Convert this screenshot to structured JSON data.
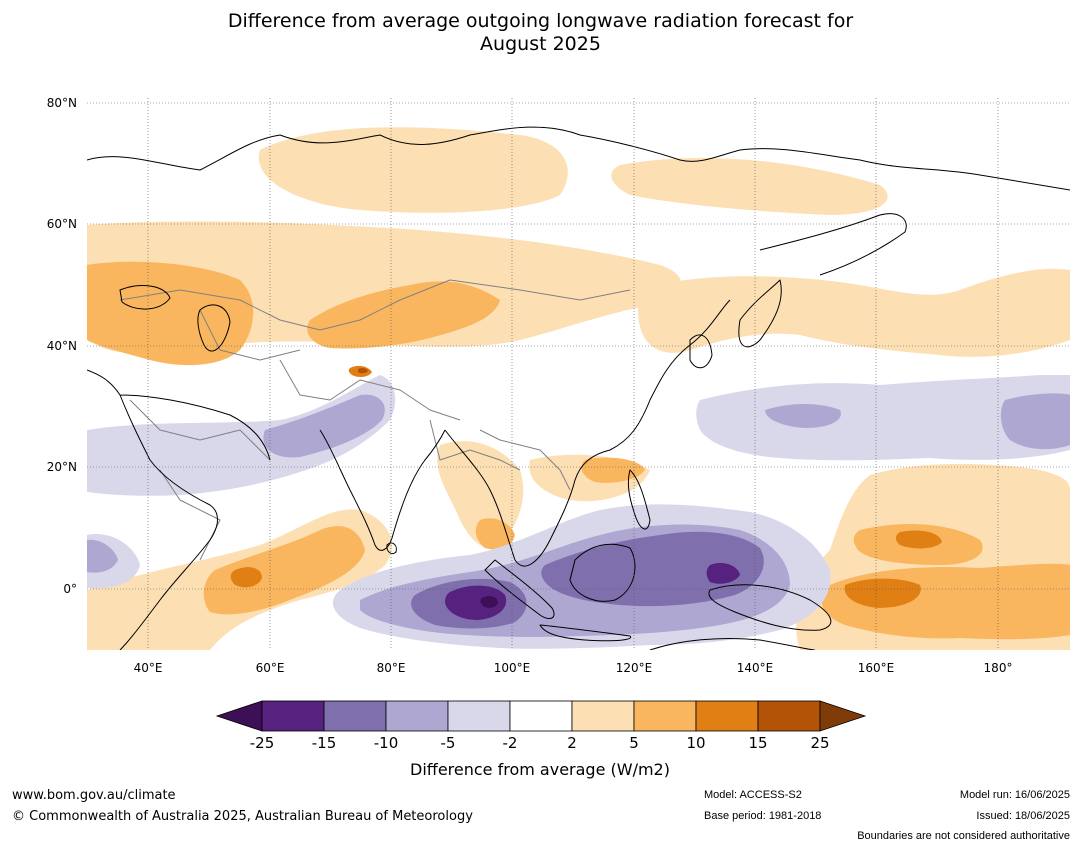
{
  "title_line1": "Difference from average outgoing longwave radiation forecast for",
  "title_line2": "August 2025",
  "lat_labels": [
    "80°N",
    "60°N",
    "40°N",
    "20°N",
    "0°"
  ],
  "lon_labels": [
    "40°E",
    "60°E",
    "80°E",
    "100°E",
    "120°E",
    "140°E",
    "160°E",
    "180°"
  ],
  "colorbar": {
    "colors": [
      "#3c0f57",
      "#56217f",
      "#7f6fad",
      "#aea7d1",
      "#d9d8eb",
      "#ffffff",
      "#fddfb4",
      "#f9b65e",
      "#e07f14",
      "#b25307",
      "#7f3b08"
    ],
    "tick_labels": [
      "-25",
      "-15",
      "-10",
      "-5",
      "-2",
      "2",
      "5",
      "10",
      "15",
      "25"
    ],
    "label": "Difference from average (W/m2)"
  },
  "footer": {
    "url": "www.bom.gov.au/climate",
    "copyright": "© Commonwealth of Australia 2025, Australian Bureau of Meteorology",
    "model": "Model: ACCESS-S2",
    "base_period": "Base period: 1981-2018",
    "model_run": "Model run: 16/06/2025",
    "issued": "Issued: 18/06/2025",
    "boundaries_note": "Boundaries are not considered authoritative"
  }
}
